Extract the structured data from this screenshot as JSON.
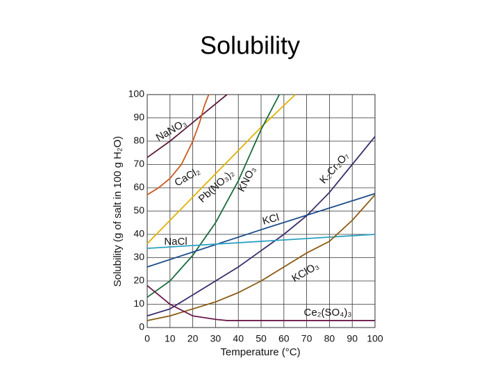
{
  "chart_data": {
    "type": "line",
    "title": "Solubility",
    "xlabel": "Temperature (°C)",
    "ylabel": "Solubility (g of salt in 100 g H₂O)",
    "xlim": [
      0,
      100
    ],
    "ylim": [
      0,
      100
    ],
    "xticks": [
      0,
      10,
      20,
      30,
      40,
      50,
      60,
      70,
      80,
      90,
      100
    ],
    "yticks": [
      0,
      10,
      20,
      30,
      40,
      50,
      60,
      70,
      80,
      90,
      100
    ],
    "grid": true,
    "series": [
      {
        "name": "NaNO₃",
        "color": "#5a1a3a",
        "x": [
          0,
          10,
          20,
          30,
          35
        ],
        "values": [
          73,
          80,
          88,
          96,
          100
        ]
      },
      {
        "name": "CaCl₂",
        "color": "#c85a1e",
        "x": [
          0,
          5,
          10,
          15,
          20,
          23,
          25,
          27
        ],
        "values": [
          57,
          60,
          64,
          70,
          80,
          88,
          95,
          100
        ]
      },
      {
        "name": "Pb(NO₃)₂",
        "color": "#e0b000",
        "x": [
          0,
          10,
          20,
          30,
          40,
          50,
          65
        ],
        "values": [
          36,
          46,
          56,
          66,
          76,
          86,
          100
        ]
      },
      {
        "name": "KNO₃",
        "color": "#1a6a3a",
        "x": [
          0,
          10,
          20,
          30,
          40,
          50,
          58
        ],
        "values": [
          13,
          20,
          31,
          45,
          63,
          85,
          100
        ]
      },
      {
        "name": "K₂Cr₂O₇",
        "color": "#3a2a6a",
        "x": [
          0,
          10,
          20,
          30,
          40,
          50,
          60,
          70,
          80,
          90,
          100
        ],
        "values": [
          5,
          8,
          14,
          20,
          26,
          33,
          40,
          48,
          58,
          70,
          82
        ]
      },
      {
        "name": "KCl",
        "color": "#1a4a8a",
        "x": [
          0,
          50,
          100
        ],
        "values": [
          26,
          42,
          57.5
        ]
      },
      {
        "name": "NaCl",
        "color": "#2aa0c0",
        "x": [
          0,
          100
        ],
        "values": [
          34,
          40
        ]
      },
      {
        "name": "KClO₃",
        "color": "#8a5a10",
        "x": [
          0,
          10,
          20,
          30,
          40,
          50,
          60,
          70,
          80,
          90,
          100
        ],
        "values": [
          3,
          5,
          8,
          11,
          15,
          20,
          26,
          32,
          37,
          46,
          57
        ]
      },
      {
        "name": "Ce₂(SO₄)₃",
        "color": "#6a1a4a",
        "x": [
          0,
          10,
          20,
          30,
          35,
          100
        ],
        "values": [
          18,
          10,
          5,
          3.5,
          3,
          3
        ]
      }
    ]
  }
}
